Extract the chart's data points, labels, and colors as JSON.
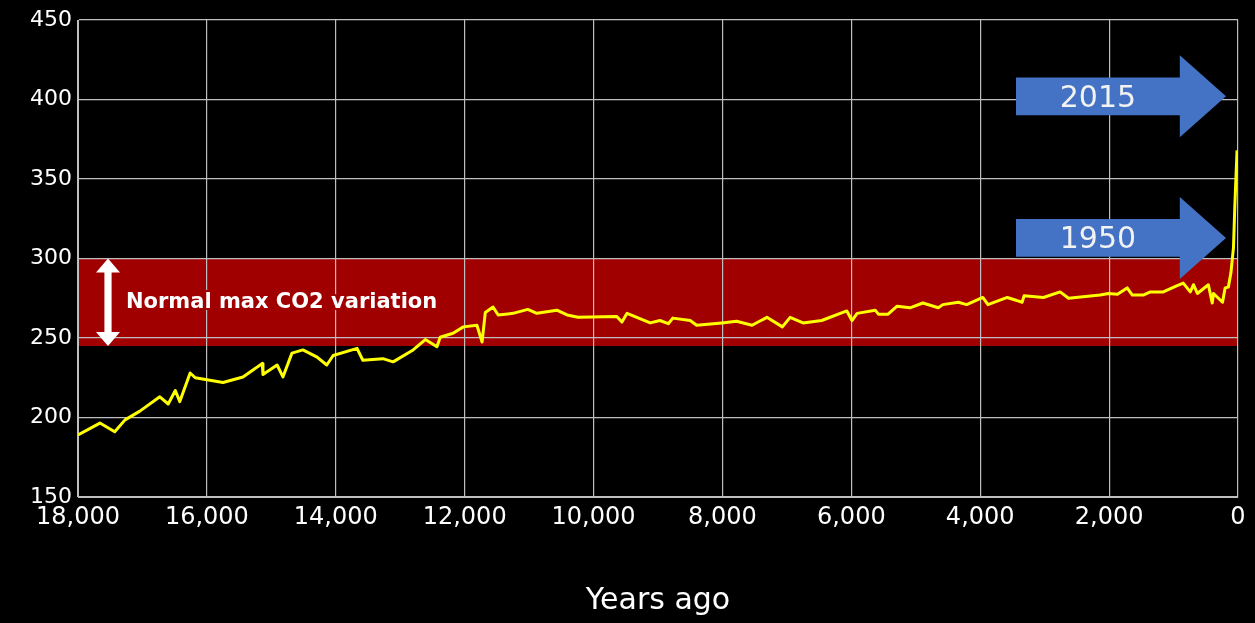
{
  "chart_data": {
    "type": "line",
    "xlabel": "Years ago",
    "x": [
      18000,
      17660,
      17430,
      17270,
      17040,
      16730,
      16600,
      16490,
      16420,
      16260,
      16180,
      15750,
      15440,
      15140,
      15130,
      14910,
      14820,
      14680,
      14510,
      14290,
      14140,
      14040,
      13670,
      13580,
      13270,
      13110,
      12800,
      12610,
      12430,
      12380,
      12180,
      12020,
      11810,
      11730,
      11680,
      11560,
      11480,
      11250,
      11020,
      10880,
      10570,
      10410,
      10240,
      9640,
      9560,
      9480,
      9120,
      8970,
      8840,
      8770,
      8500,
      8400,
      8010,
      7780,
      7540,
      7310,
      7070,
      6950,
      6750,
      6460,
      6070,
      5990,
      5910,
      5630,
      5580,
      5430,
      5290,
      5090,
      4890,
      4650,
      4580,
      4340,
      4210,
      3960,
      3880,
      3580,
      3350,
      3320,
      3020,
      2760,
      2630,
      2140,
      2010,
      1870,
      1720,
      1640,
      1470,
      1360,
      1160,
      970,
      850,
      740,
      690,
      630,
      460,
      400,
      380,
      240,
      200,
      150,
      110,
      70,
      50,
      15
    ],
    "series": [
      {
        "color": "#ffff00",
        "values": [
          189,
          196.5,
          191,
          198.5,
          204,
          213,
          208.5,
          217,
          210,
          228,
          225,
          222,
          225.5,
          234,
          227,
          233,
          225.5,
          240.5,
          242.5,
          238,
          233,
          239,
          243.5,
          236,
          237,
          235,
          242.5,
          249,
          244.5,
          250.5,
          253,
          257,
          258,
          247.5,
          266,
          269.5,
          264.5,
          265.5,
          268,
          265.5,
          267.5,
          264.5,
          263,
          263.5,
          260,
          265.5,
          259.5,
          261,
          259,
          262.5,
          261,
          258,
          259.5,
          260.5,
          258,
          263,
          257,
          263,
          259.5,
          261,
          267,
          261,
          265.5,
          267.5,
          265,
          265,
          270,
          269,
          272,
          269,
          271,
          272.5,
          271,
          275.5,
          271,
          275.5,
          272.5,
          276.5,
          275.5,
          279,
          275,
          277,
          278,
          277.5,
          281.5,
          277,
          277,
          279,
          279,
          282.5,
          284.5,
          279,
          283.5,
          278,
          283.5,
          272,
          278,
          272.5,
          281.5,
          282,
          291,
          307,
          332,
          368
        ]
      }
    ],
    "xlim": [
      18000,
      0
    ],
    "xticks": [
      {
        "value": 18000,
        "label": "18,000"
      },
      {
        "value": 16000,
        "label": "16,000"
      },
      {
        "value": 14000,
        "label": "14,000"
      },
      {
        "value": 12000,
        "label": "12,000"
      },
      {
        "value": 10000,
        "label": "10,000"
      },
      {
        "value": 8000,
        "label": "8,000"
      },
      {
        "value": 6000,
        "label": "6,000"
      },
      {
        "value": 4000,
        "label": "4,000"
      },
      {
        "value": 2000,
        "label": "2,000"
      },
      0
    ],
    "ylim": [
      150,
      450
    ],
    "yticks": [
      150,
      200,
      250,
      300,
      350,
      400,
      450
    ],
    "bands": [
      {
        "axis": "y",
        "from": 245,
        "to": 300,
        "label": "Normal max CO2 variation",
        "color": "#a00000"
      }
    ],
    "annotations": [
      "2015",
      "1950"
    ],
    "grid": true,
    "legend": false,
    "marker": "none",
    "line_style": "solid"
  }
}
